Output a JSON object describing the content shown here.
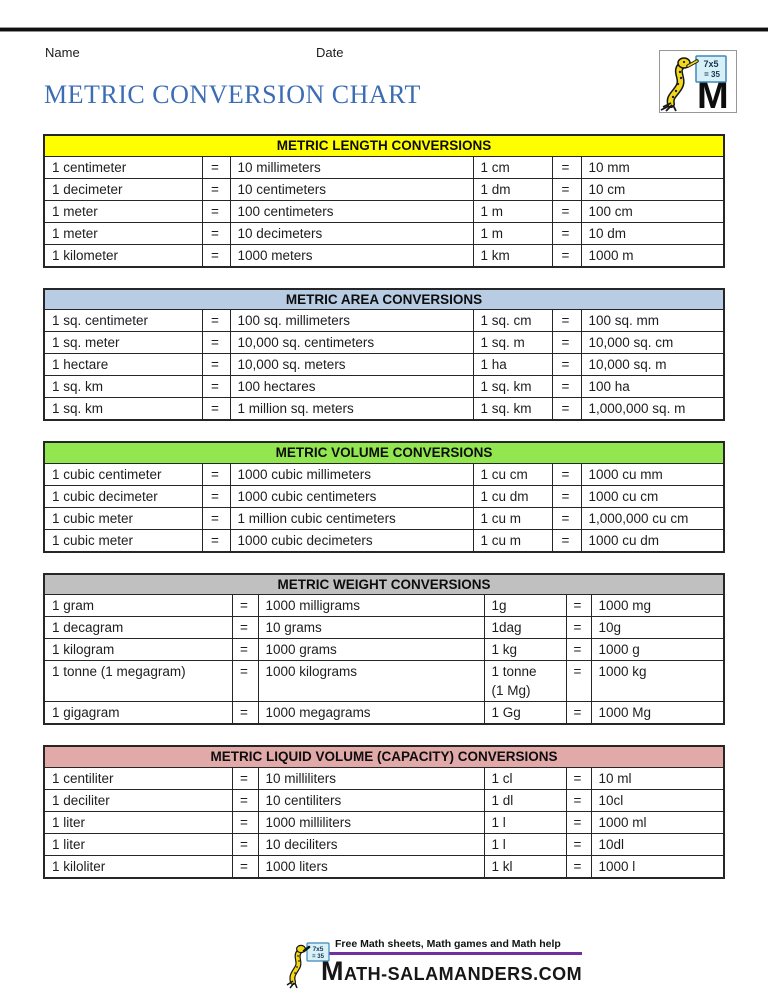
{
  "page": {
    "name_label": "Name",
    "date_label": "Date",
    "title": "METRIC CONVERSION CHART"
  },
  "logo": {
    "icon": "salamander-easel-logo-icon",
    "sign_line1": "7x5",
    "sign_line2": "= 35",
    "letter": "M"
  },
  "colors": {
    "title_blue": "#3c6cb4",
    "footer_underline_purple": "#7030a0",
    "salamander_yellow": "#f3d818",
    "sign_blue_fill": "#d8f1f8",
    "sign_blue_border": "#3f87b8"
  },
  "tables": [
    {
      "id": "length",
      "header": "METRIC LENGTH CONVERSIONS",
      "header_color": "#ffff00",
      "layout": "A",
      "rows": [
        [
          "1 centimeter",
          "=",
          "10 millimeters",
          "1 cm",
          "=",
          "10 mm"
        ],
        [
          "1 decimeter",
          "=",
          "10 centimeters",
          "1 dm",
          "=",
          "10 cm"
        ],
        [
          "1 meter",
          "=",
          "100 centimeters",
          "1 m",
          "=",
          "100 cm"
        ],
        [
          "1 meter",
          "=",
          "10 decimeters",
          "1 m",
          "=",
          "10 dm"
        ],
        [
          "1 kilometer",
          "=",
          "1000 meters",
          "1 km",
          "=",
          "1000 m"
        ]
      ]
    },
    {
      "id": "area",
      "header": "METRIC AREA CONVERSIONS",
      "header_color": "#b8cce4",
      "layout": "A",
      "rows": [
        [
          "1 sq. centimeter",
          "=",
          "100 sq. millimeters",
          "1 sq. cm",
          "=",
          "100 sq. mm"
        ],
        [
          "1 sq. meter",
          "=",
          "10,000 sq. centimeters",
          "1 sq. m",
          "=",
          "10,000 sq. cm"
        ],
        [
          "1 hectare",
          "=",
          "10,000 sq. meters",
          "1 ha",
          "=",
          "10,000 sq. m"
        ],
        [
          "1 sq. km",
          "=",
          "100 hectares",
          "1 sq. km",
          "=",
          "100 ha"
        ],
        [
          "1 sq. km",
          "=",
          "1 million sq. meters",
          "1 sq. km",
          "=",
          "1,000,000 sq. m"
        ]
      ]
    },
    {
      "id": "volume",
      "header": "METRIC VOLUME CONVERSIONS",
      "header_color": "#92e64f",
      "layout": "A",
      "rows": [
        [
          "1 cubic centimeter",
          "=",
          "1000 cubic millimeters",
          "1 cu cm",
          "=",
          "1000 cu mm"
        ],
        [
          "1 cubic decimeter",
          "=",
          "1000 cubic centimeters",
          "1 cu dm",
          "=",
          "1000 cu cm"
        ],
        [
          "1 cubic meter",
          "=",
          "1 million cubic centimeters",
          "1 cu m",
          "=",
          "1,000,000 cu cm"
        ],
        [
          "1 cubic meter",
          "=",
          "1000 cubic decimeters",
          "1 cu m",
          "=",
          "1000 cu dm"
        ]
      ]
    },
    {
      "id": "weight",
      "header": "METRIC WEIGHT CONVERSIONS",
      "header_color": "#c0c0c0",
      "layout": "B",
      "rows": [
        [
          "1 gram",
          "=",
          "1000 milligrams",
          "1g",
          "=",
          "1000 mg"
        ],
        [
          "1 decagram",
          "=",
          "10 grams",
          "1dag",
          "=",
          "10g"
        ],
        [
          "1 kilogram",
          "=",
          "1000 grams",
          "1 kg",
          "=",
          "1000 g"
        ],
        [
          "1 tonne (1 megagram)",
          "=",
          "1000 kilograms",
          "1 tonne\n(1 Mg)",
          "=",
          "1000 kg"
        ],
        [
          "1 gigagram",
          "=",
          "1000 megagrams",
          "1 Gg",
          "=",
          "1000 Mg"
        ]
      ]
    },
    {
      "id": "liquid",
      "header": "METRIC LIQUID VOLUME (CAPACITY) CONVERSIONS",
      "header_color": "#e2a9a9",
      "layout": "B",
      "rows": [
        [
          "1 centiliter",
          "=",
          "10 milliliters",
          "1 cl",
          "=",
          "10 ml"
        ],
        [
          "1 deciliter",
          "=",
          "10 centiliters",
          "1 dl",
          "=",
          "10cl"
        ],
        [
          "1 liter",
          "=",
          "1000 milliliters",
          "1 l",
          "=",
          "1000 ml"
        ],
        [
          "1 liter",
          "=",
          "10 deciliters",
          "1 l",
          "=",
          "10dl"
        ],
        [
          "1 kiloliter",
          "=",
          "1000 liters",
          "1 kl",
          "=",
          "1000 l"
        ]
      ]
    }
  ],
  "footer": {
    "icon": "salamander-easel-logo-icon",
    "tagline": "Free Math sheets, Math games and Math help",
    "site_name": "MATH-SALAMANDERS.COM"
  }
}
